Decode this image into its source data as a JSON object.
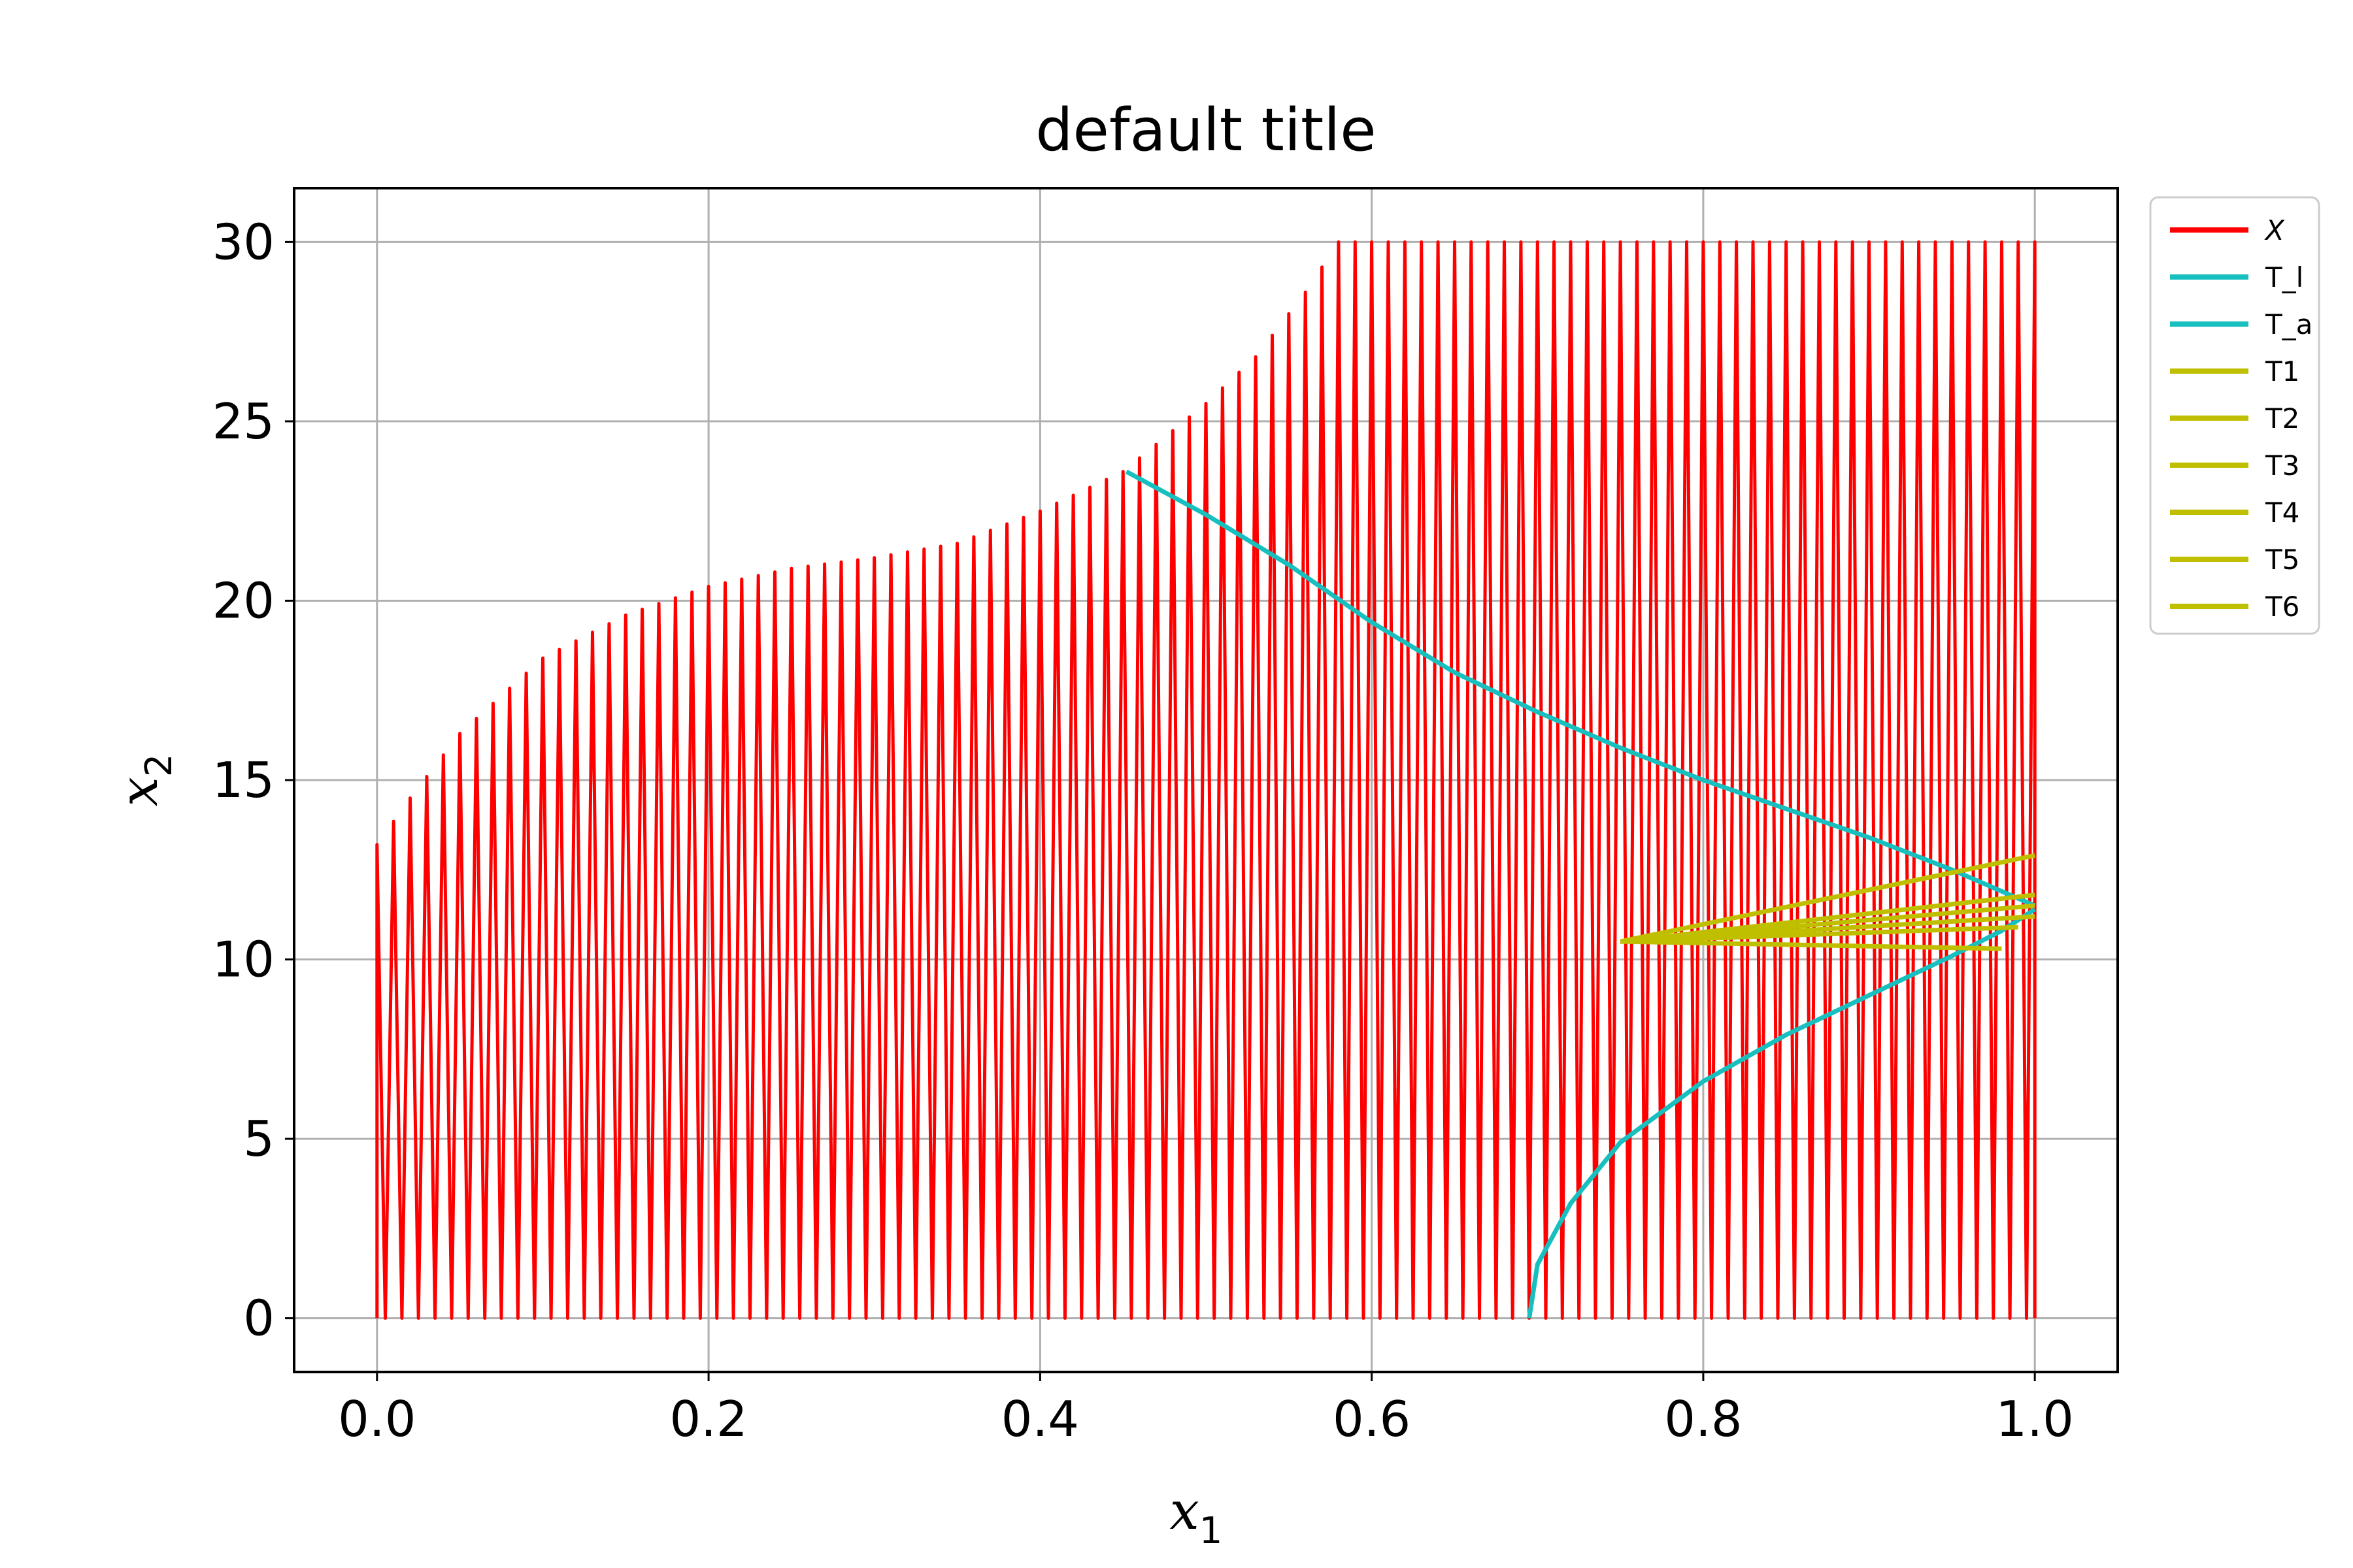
{
  "chart_data": {
    "type": "line",
    "title": "default title",
    "xlabel": "x",
    "xlabel_sub": "1",
    "ylabel": "x",
    "ylabel_sub": "2",
    "xlim": [
      -0.05,
      1.05
    ],
    "ylim": [
      -1.5,
      31.5
    ],
    "xticks": [
      0.0,
      0.2,
      0.4,
      0.6,
      0.8,
      1.0
    ],
    "xtick_labels": [
      "0.0",
      "0.2",
      "0.4",
      "0.6",
      "0.8",
      "1.0"
    ],
    "yticks": [
      0,
      5,
      10,
      15,
      20,
      25,
      30
    ],
    "ytick_labels": [
      "0",
      "5",
      "10",
      "15",
      "20",
      "25",
      "30"
    ],
    "grid": true,
    "legend_position": "outside-upper-right",
    "colors": {
      "X": "#ff0000",
      "T_l": "#17bfbf",
      "T_a": "#17bfbf",
      "T": "#bfbf00"
    },
    "series": [
      {
        "name": "X",
        "kind": "vertical-comb",
        "color": "#ff0000",
        "x_range": [
          0,
          1
        ],
        "tooth_count": 100,
        "base_y": 0,
        "envelope": {
          "x": [
            0.0,
            0.02,
            0.05,
            0.1,
            0.15,
            0.2,
            0.25,
            0.3,
            0.35,
            0.4,
            0.45,
            0.5,
            0.53,
            0.56,
            0.58,
            0.59,
            1.0
          ],
          "y": [
            13.2,
            14.5,
            16.3,
            18.4,
            19.6,
            20.4,
            20.9,
            21.2,
            21.6,
            22.5,
            23.6,
            25.5,
            26.8,
            28.6,
            30.0,
            30.0,
            30.0
          ]
        }
      },
      {
        "name": "T_l",
        "color": "#17bfbf",
        "x": [
          0.452,
          0.5,
          0.55,
          0.6,
          0.65,
          0.7,
          0.75,
          0.8,
          0.85,
          0.9,
          0.95,
          0.98,
          1.0
        ],
        "y": [
          23.6,
          22.4,
          21.0,
          19.4,
          18.0,
          16.9,
          15.9,
          15.0,
          14.2,
          13.4,
          12.5,
          11.9,
          11.5
        ]
      },
      {
        "name": "T_a",
        "color": "#17bfbf",
        "x": [
          0.695,
          0.7,
          0.72,
          0.75,
          0.8,
          0.85,
          0.9,
          0.95,
          0.98,
          1.0
        ],
        "y": [
          0.0,
          1.5,
          3.2,
          4.9,
          6.6,
          7.9,
          9.0,
          10.1,
          10.8,
          11.4
        ]
      },
      {
        "name": "T1",
        "color": "#bfbf00",
        "x": [
          0.75,
          1.0
        ],
        "y": [
          10.5,
          12.9
        ]
      },
      {
        "name": "T2",
        "color": "#bfbf00",
        "x": [
          0.75,
          1.0
        ],
        "y": [
          10.5,
          11.8
        ]
      },
      {
        "name": "T3",
        "color": "#bfbf00",
        "x": [
          0.75,
          1.0
        ],
        "y": [
          10.5,
          11.5
        ]
      },
      {
        "name": "T4",
        "color": "#bfbf00",
        "x": [
          0.75,
          1.0
        ],
        "y": [
          10.5,
          11.2
        ]
      },
      {
        "name": "T5",
        "color": "#bfbf00",
        "x": [
          0.75,
          0.99
        ],
        "y": [
          10.5,
          10.9
        ]
      },
      {
        "name": "T6",
        "color": "#bfbf00",
        "x": [
          0.75,
          0.98
        ],
        "y": [
          10.5,
          10.3
        ]
      }
    ],
    "legend": [
      "X",
      "T_l",
      "T_a",
      "T1",
      "T2",
      "T3",
      "T4",
      "T5",
      "T6"
    ]
  }
}
